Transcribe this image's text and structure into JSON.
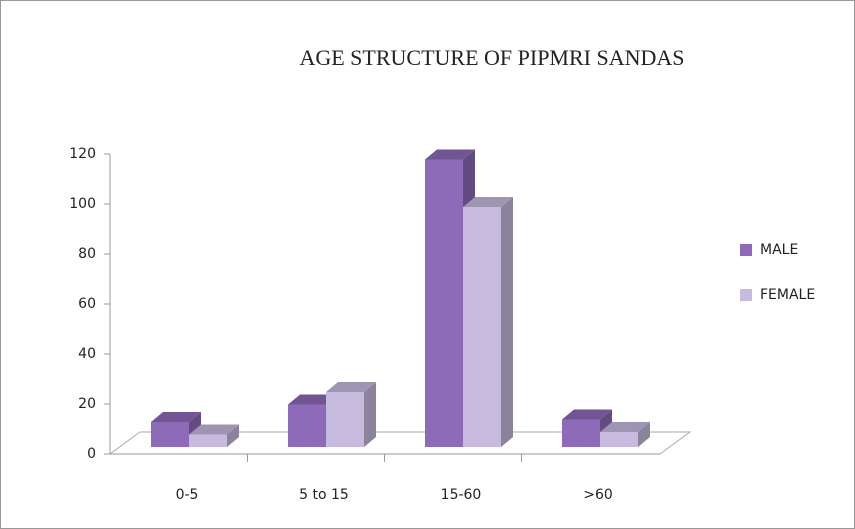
{
  "chart_data": {
    "type": "bar3d",
    "title": "AGE STRUCTURE OF PIPMRI SANDAS",
    "categories": [
      "0-5",
      "5 to 15",
      "15-60",
      ">60"
    ],
    "series": [
      {
        "name": "MALE",
        "color": "#8e6bb8",
        "values": [
          10,
          17,
          115,
          11
        ]
      },
      {
        "name": "FEMALE",
        "color": "#c6bade",
        "values": [
          5,
          22,
          96,
          6
        ]
      }
    ],
    "ylim": [
      0,
      120
    ],
    "yticks": [
      0,
      20,
      40,
      60,
      80,
      100,
      120
    ],
    "legend": "right"
  }
}
